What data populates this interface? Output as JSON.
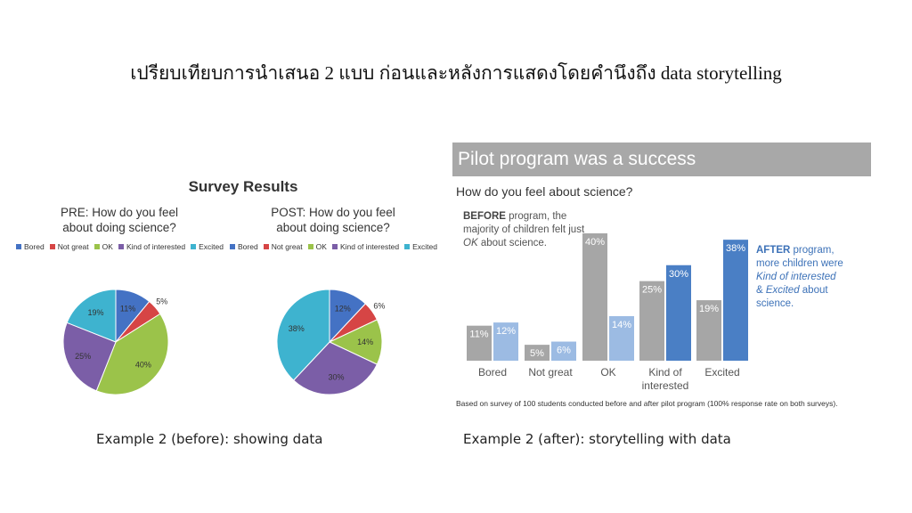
{
  "slide": {
    "title": "เปรียบเทียบการนำเสนอ 2 แบบ ก่อนและหลังการแสดงโดยคำนึงถึง data storytelling",
    "caption_before": "Example 2 (before): showing data",
    "caption_after": "Example 2 (after): storytelling with data"
  },
  "before": {
    "title": "Survey Results",
    "legend": [
      {
        "label": "Bored",
        "color": "#4472c4"
      },
      {
        "label": "Not great",
        "color": "#d64545"
      },
      {
        "label": "OK",
        "color": "#9bc34a"
      },
      {
        "label": "Kind of interested",
        "color": "#7b5ea7"
      },
      {
        "label": "Excited",
        "color": "#3eb3cf"
      }
    ],
    "pre_title": "PRE: How do you feel\nabout doing science?",
    "post_title": "POST: How do you feel\nabout doing science?"
  },
  "after": {
    "banner": "Pilot program was a success",
    "question": "How do you feel about science?",
    "before_note_bold": "BEFORE",
    "before_note_rest": " program, the majority of children felt just ",
    "before_note_ital": "OK",
    "before_note_end": " about science.",
    "after_note_bold": "AFTER",
    "after_note_line1": " program, more children were ",
    "after_note_ital1": "Kind of interested",
    "after_note_amp": " & ",
    "after_note_ital2": "Excited",
    "after_note_end": " about science.",
    "footnote": "Based on survey of 100 students conducted before and after pilot program (100% response rate on both surveys)."
  },
  "chart_data": [
    {
      "type": "pie",
      "title": "PRE: How do you feel about doing science?",
      "categories": [
        "Bored",
        "Not great",
        "OK",
        "Kind of interested",
        "Excited"
      ],
      "values": [
        11,
        5,
        40,
        25,
        19
      ],
      "labels": [
        "11%",
        "5%",
        "40%",
        "25%",
        "19%"
      ],
      "colors": [
        "#4472c4",
        "#d64545",
        "#9bc34a",
        "#7b5ea7",
        "#3eb3cf"
      ]
    },
    {
      "type": "pie",
      "title": "POST: How do you feel about doing science?",
      "categories": [
        "Bored",
        "Not great",
        "OK",
        "Kind of interested",
        "Excited"
      ],
      "values": [
        12,
        6,
        14,
        30,
        38
      ],
      "labels": [
        "12%",
        "6%",
        "14%",
        "30%",
        "38%"
      ],
      "colors": [
        "#4472c4",
        "#d64545",
        "#9bc34a",
        "#7b5ea7",
        "#3eb3cf"
      ]
    },
    {
      "type": "bar",
      "title": "Pilot program was a success",
      "subtitle": "How do you feel about science?",
      "categories": [
        "Bored",
        "Not great",
        "OK",
        "Kind of\ninterested",
        "Excited"
      ],
      "series": [
        {
          "name": "BEFORE",
          "values": [
            11,
            5,
            40,
            25,
            19
          ],
          "labels": [
            "11%",
            "5%",
            "40%",
            "25%",
            "19%"
          ],
          "colors": [
            "#a6a6a6",
            "#a6a6a6",
            "#a6a6a6",
            "#a6a6a6",
            "#a6a6a6"
          ]
        },
        {
          "name": "AFTER",
          "values": [
            12,
            6,
            14,
            30,
            38
          ],
          "labels": [
            "12%",
            "6%",
            "14%",
            "30%",
            "38%"
          ],
          "colors": [
            "#9cbbe3",
            "#9cbbe3",
            "#9cbbe3",
            "#4a7fc5",
            "#4a7fc5"
          ]
        }
      ],
      "ylim": [
        0,
        40
      ],
      "grid": false
    }
  ]
}
